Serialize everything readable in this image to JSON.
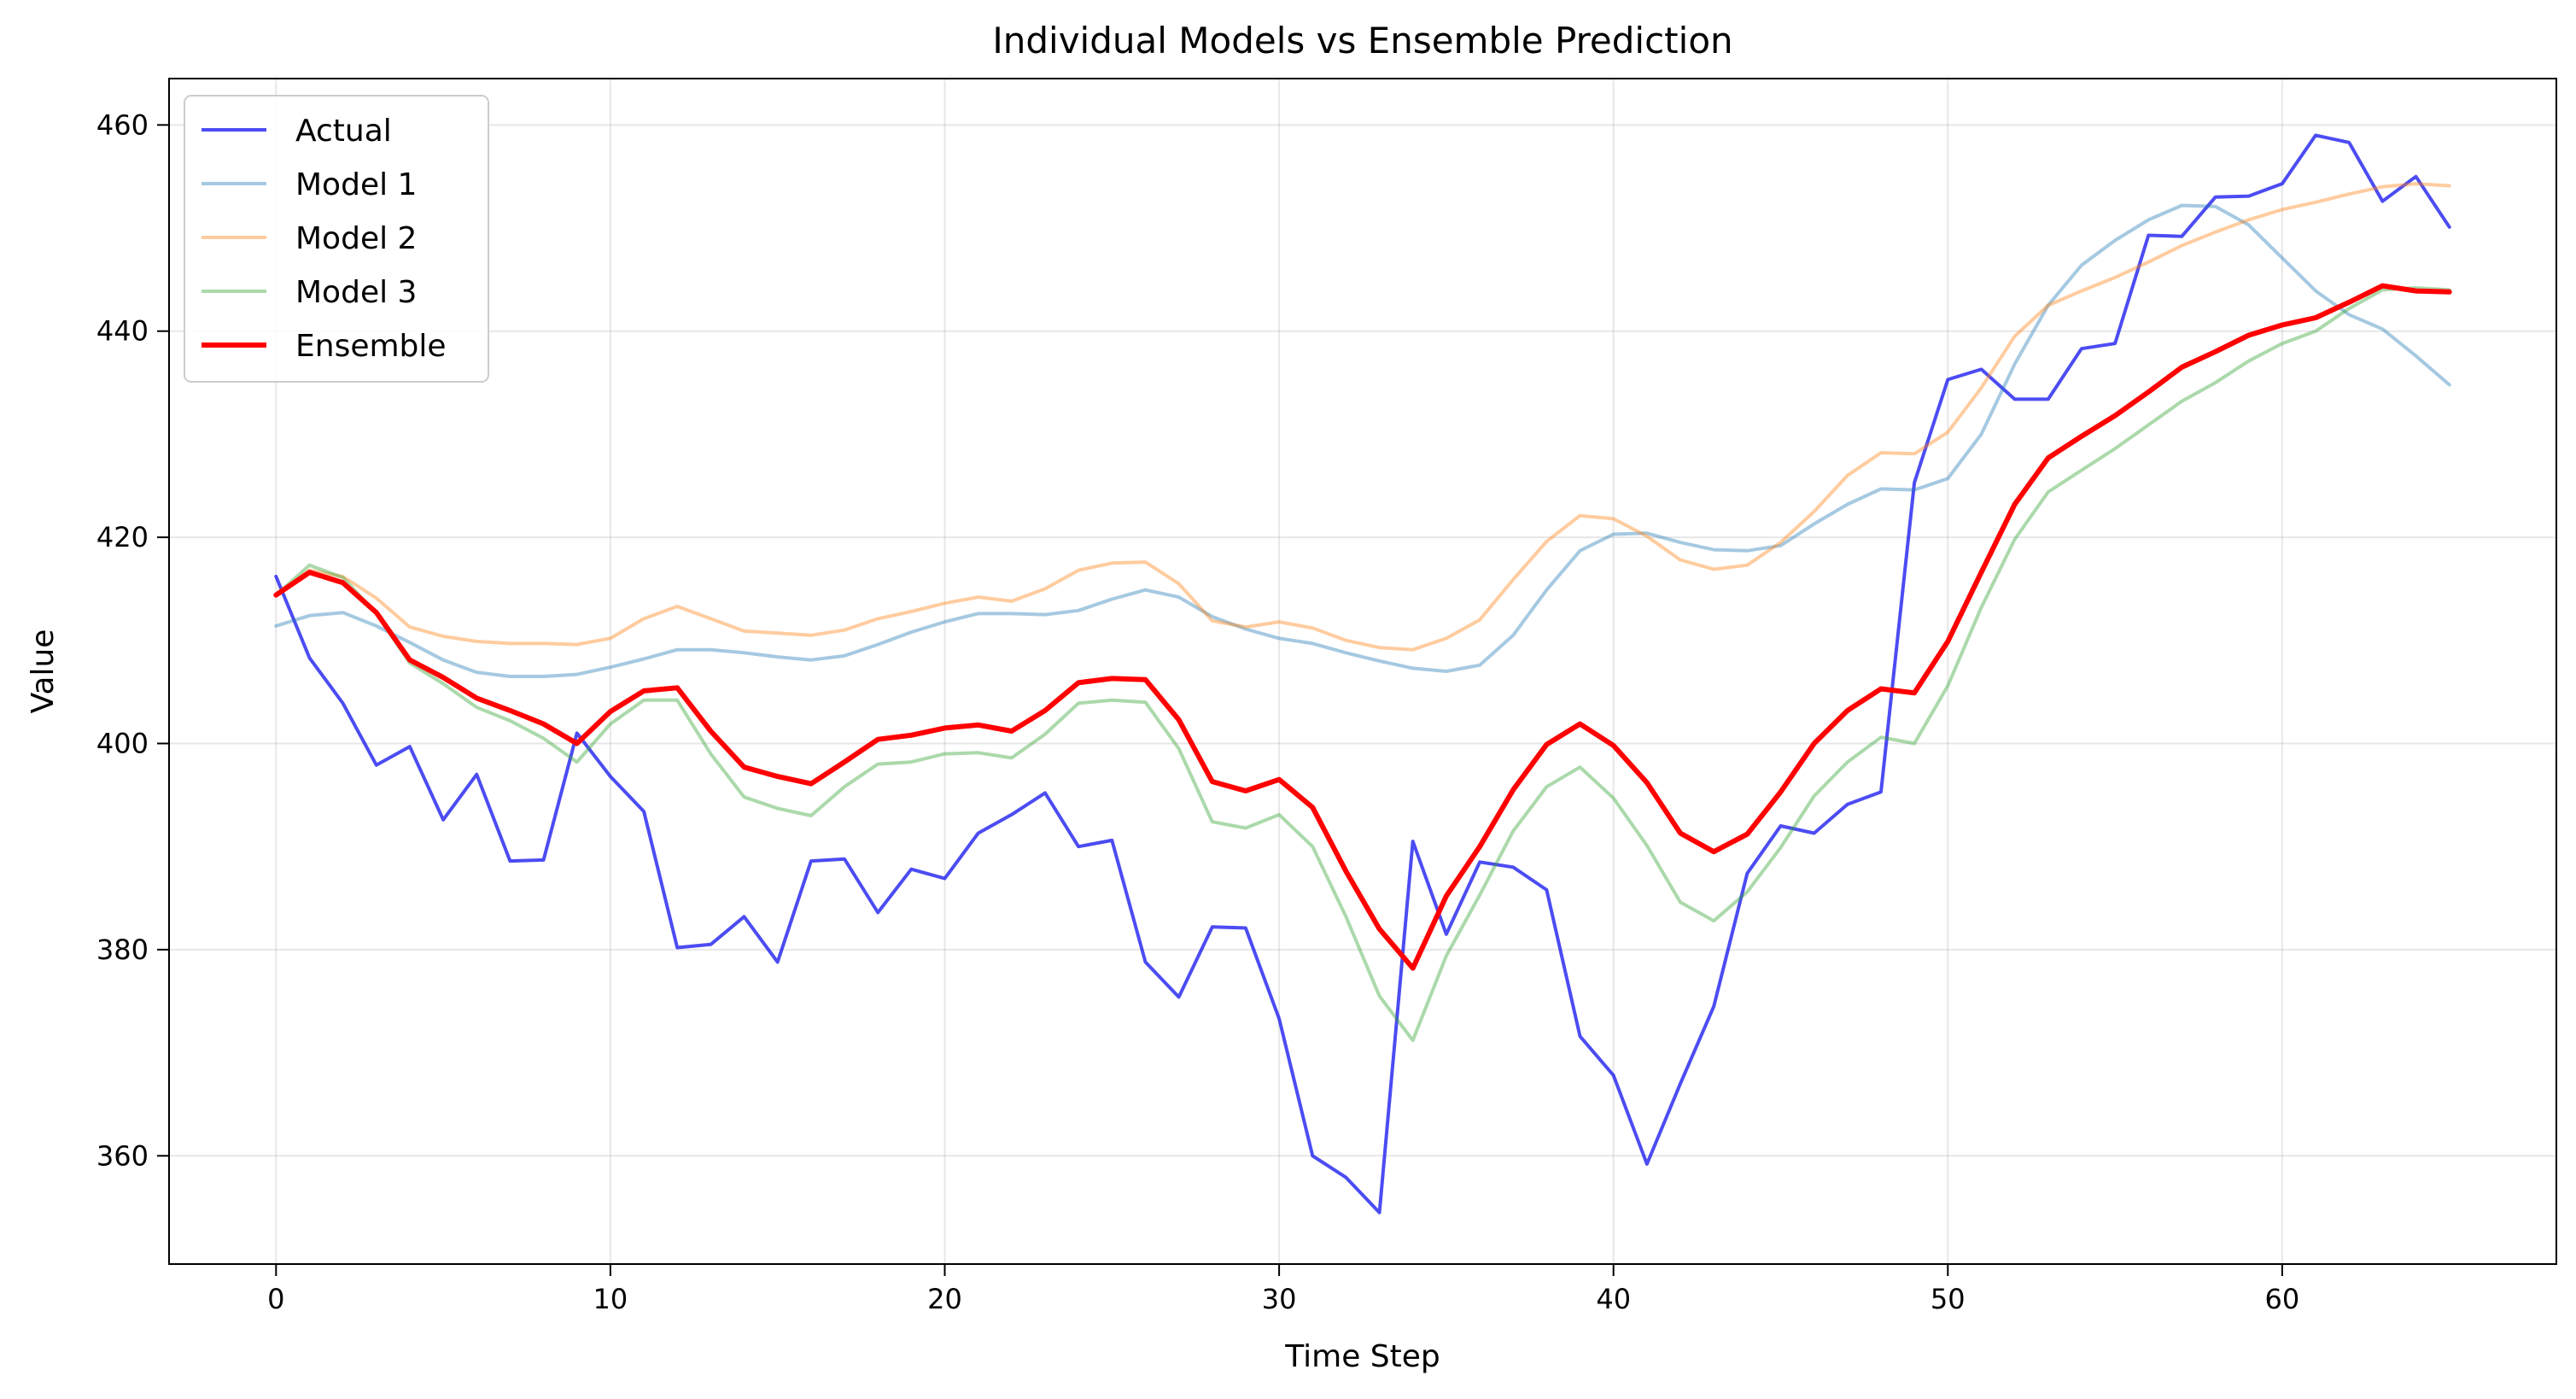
{
  "chart_data": {
    "type": "line",
    "title": "Individual Models vs Ensemble Prediction",
    "xlabel": "Time Step",
    "ylabel": "Value",
    "xlim": [
      -3.2,
      68.2
    ],
    "ylim": [
      349.5,
      464.5
    ],
    "xticks": [
      0,
      10,
      20,
      30,
      40,
      50,
      60
    ],
    "yticks": [
      360,
      380,
      400,
      420,
      440,
      460
    ],
    "grid": true,
    "legend_position": "top-left",
    "x": [
      0,
      1,
      2,
      3,
      4,
      5,
      6,
      7,
      8,
      9,
      10,
      11,
      12,
      13,
      14,
      15,
      16,
      17,
      18,
      19,
      20,
      21,
      22,
      23,
      24,
      25,
      26,
      27,
      28,
      29,
      30,
      31,
      32,
      33,
      34,
      35,
      36,
      37,
      38,
      39,
      40,
      41,
      42,
      43,
      44,
      45,
      46,
      47,
      48,
      49,
      50,
      51,
      52,
      53,
      54,
      55,
      56,
      57,
      58,
      59,
      60,
      61,
      62,
      63,
      64,
      65
    ],
    "series": [
      {
        "name": "Actual",
        "color": "#0000ee",
        "opacity": 0.7,
        "width": 4,
        "values": [
          416.2,
          408.3,
          403.9,
          397.9,
          399.7,
          392.6,
          397.0,
          388.6,
          388.7,
          401.0,
          396.8,
          393.4,
          380.2,
          380.5,
          383.2,
          378.8,
          388.6,
          388.8,
          383.6,
          387.8,
          386.9,
          391.3,
          393.1,
          395.2,
          390.0,
          390.6,
          378.8,
          375.4,
          382.2,
          382.1,
          373.3,
          360.0,
          357.9,
          354.5,
          390.5,
          381.5,
          388.5,
          388.0,
          385.8,
          371.6,
          367.8,
          359.2,
          367.0,
          374.5,
          387.4,
          392.0,
          391.3,
          394.1,
          395.3,
          425.3,
          435.3,
          436.3,
          433.4,
          433.4,
          438.3,
          438.8,
          449.3,
          449.2,
          453.0,
          453.1,
          454.3,
          459.0,
          458.3,
          452.6,
          455.0,
          450.1
        ]
      },
      {
        "name": "Model 1",
        "color": "#1f77b4",
        "opacity": 0.4,
        "width": 4,
        "values": [
          411.4,
          412.4,
          412.7,
          411.4,
          409.8,
          408.1,
          406.9,
          406.5,
          406.5,
          406.7,
          407.4,
          408.2,
          409.1,
          409.1,
          408.8,
          408.4,
          408.1,
          408.5,
          409.6,
          410.8,
          411.8,
          412.6,
          412.6,
          412.5,
          412.9,
          414.0,
          414.9,
          414.2,
          412.3,
          411.1,
          410.2,
          409.7,
          408.8,
          408.0,
          407.3,
          407.0,
          407.6,
          410.5,
          414.9,
          418.7,
          420.3,
          420.4,
          419.5,
          418.8,
          418.7,
          419.2,
          421.3,
          423.2,
          424.7,
          424.6,
          425.7,
          430.0,
          436.8,
          442.5,
          446.4,
          448.8,
          450.8,
          452.2,
          452.1,
          450.3,
          447.1,
          443.9,
          441.6,
          440.2,
          437.6,
          434.8
        ]
      },
      {
        "name": "Model 2",
        "color": "#ff7f0e",
        "opacity": 0.4,
        "width": 4,
        "values": [
          414.5,
          416.8,
          416.2,
          414.1,
          411.3,
          410.4,
          409.9,
          409.7,
          409.7,
          409.6,
          410.2,
          412.1,
          413.3,
          412.1,
          410.9,
          410.7,
          410.5,
          411.0,
          412.1,
          412.8,
          413.6,
          414.2,
          413.8,
          415.0,
          416.8,
          417.5,
          417.6,
          415.5,
          411.9,
          411.3,
          411.8,
          411.2,
          410.0,
          409.3,
          409.1,
          410.2,
          412.0,
          415.9,
          419.6,
          422.1,
          421.8,
          420.1,
          417.8,
          416.9,
          417.3,
          419.5,
          422.5,
          426.0,
          428.2,
          428.1,
          430.2,
          434.5,
          439.5,
          442.5,
          443.9,
          445.2,
          446.7,
          448.3,
          449.6,
          450.8,
          451.8,
          452.5,
          453.3,
          454.0,
          454.3,
          454.1
        ]
      },
      {
        "name": "Model 3",
        "color": "#2ca02c",
        "opacity": 0.4,
        "width": 4,
        "values": [
          414.4,
          417.3,
          416.1,
          412.6,
          407.8,
          405.8,
          403.5,
          402.2,
          400.5,
          398.2,
          401.9,
          404.2,
          404.2,
          399.0,
          394.8,
          393.7,
          393.0,
          395.8,
          398.0,
          398.2,
          399.0,
          399.1,
          398.6,
          400.9,
          403.9,
          404.2,
          404.0,
          399.5,
          392.4,
          391.8,
          393.1,
          390.0,
          383.2,
          375.5,
          371.2,
          379.4,
          385.3,
          391.5,
          395.8,
          397.7,
          394.7,
          390.1,
          384.6,
          382.8,
          385.6,
          389.9,
          394.9,
          398.2,
          400.6,
          400.0,
          405.6,
          413.2,
          419.8,
          424.4,
          426.5,
          428.6,
          430.9,
          433.2,
          435.0,
          437.1,
          438.8,
          440.0,
          442.2,
          444.0,
          444.2,
          444.0
        ]
      },
      {
        "name": "Ensemble",
        "color": "#ff0000",
        "opacity": 1.0,
        "width": 6,
        "values": [
          414.4,
          416.6,
          415.6,
          412.7,
          408.1,
          406.4,
          404.4,
          403.2,
          401.9,
          400.0,
          403.1,
          405.1,
          405.4,
          401.2,
          397.7,
          396.8,
          396.1,
          398.2,
          400.4,
          400.8,
          401.5,
          401.8,
          401.2,
          403.2,
          405.9,
          406.3,
          406.2,
          402.3,
          396.3,
          395.4,
          396.5,
          393.8,
          387.6,
          382.0,
          378.2,
          385.2,
          390.0,
          395.5,
          399.9,
          401.9,
          399.8,
          396.2,
          391.3,
          389.5,
          391.2,
          395.3,
          400.0,
          403.2,
          405.3,
          404.9,
          409.9,
          416.6,
          423.2,
          427.7,
          429.8,
          431.8,
          434.1,
          436.5,
          438.0,
          439.6,
          440.6,
          441.3,
          442.8,
          444.4,
          443.9,
          443.8
        ]
      }
    ]
  }
}
